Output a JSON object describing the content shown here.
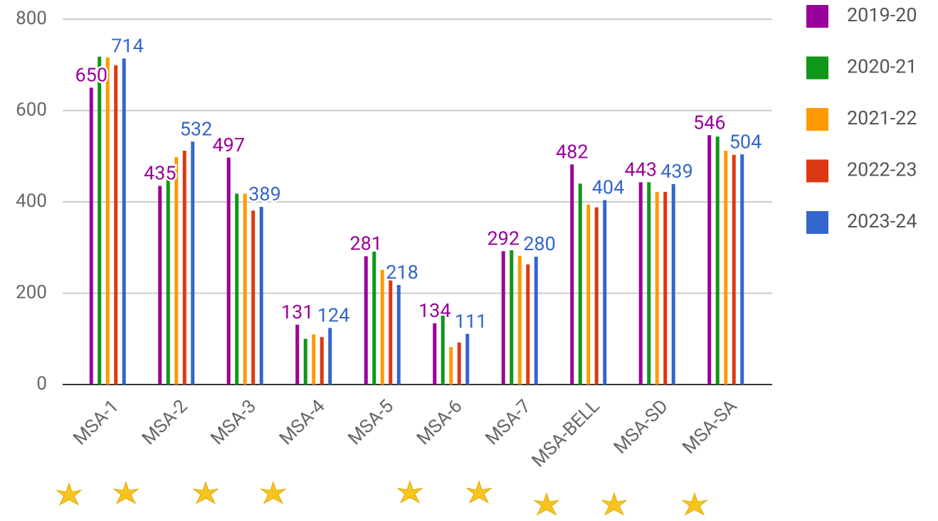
{
  "chart_data": {
    "type": "bar",
    "categories": [
      "MSA-1",
      "MSA-2",
      "MSA-3",
      "MSA-4",
      "MSA-5",
      "MSA-6",
      "MSA-7",
      "MSA-BELL",
      "MSA-SD",
      "MSA-SA"
    ],
    "series": [
      {
        "name": "2019-20",
        "color": "#990099",
        "values": [
          650,
          435,
          497,
          131,
          281,
          134,
          292,
          482,
          443,
          546
        ]
      },
      {
        "name": "2020-21",
        "color": "#109618",
        "values": [
          718,
          467,
          418,
          100,
          291,
          163,
          294,
          440,
          443,
          543
        ]
      },
      {
        "name": "2021-22",
        "color": "#ff9900",
        "values": [
          716,
          498,
          418,
          110,
          251,
          82,
          282,
          394,
          422,
          512
        ]
      },
      {
        "name": "2022-23",
        "color": "#dc3912",
        "values": [
          699,
          512,
          381,
          104,
          241,
          92,
          263,
          388,
          422,
          503
        ]
      },
      {
        "name": "2023-24",
        "color": "#3366cc",
        "values": [
          714,
          532,
          389,
          124,
          218,
          111,
          280,
          404,
          439,
          504
        ]
      }
    ],
    "labeled_series": [
      0,
      4
    ],
    "ylim": [
      0,
      800
    ],
    "yticks": [
      0,
      200,
      400,
      600,
      800
    ],
    "grid": true,
    "legend": "right"
  }
}
